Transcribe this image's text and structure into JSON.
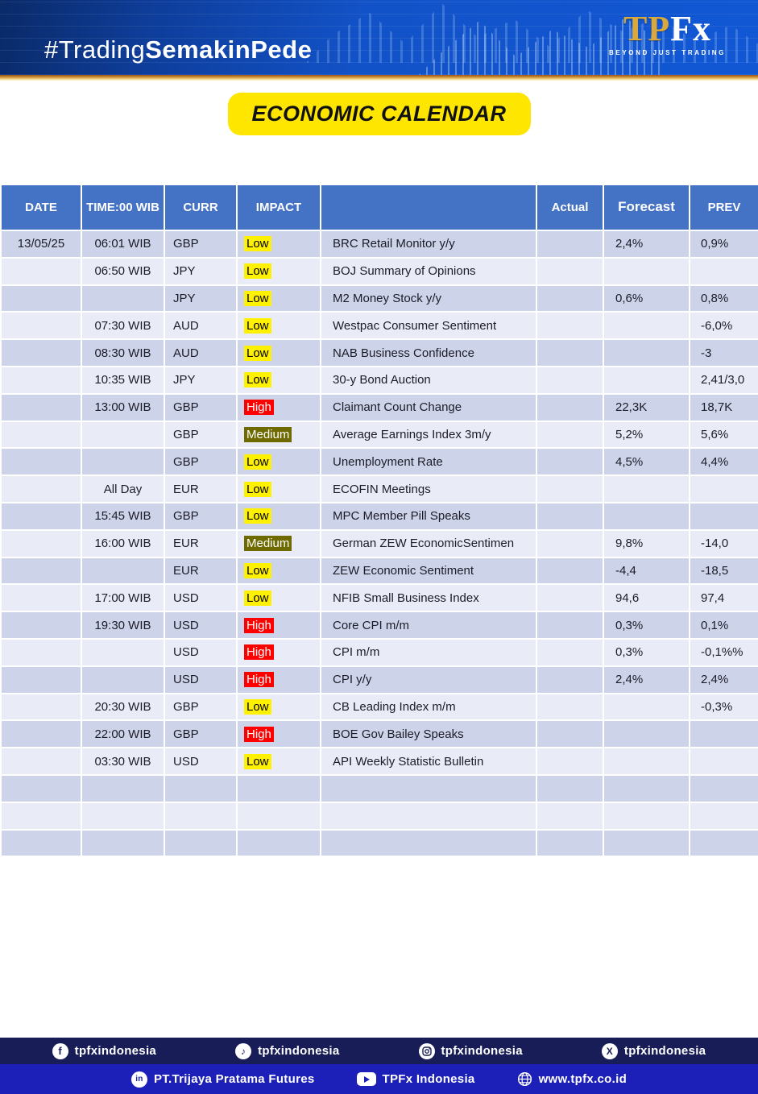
{
  "banner": {
    "hashtag_regular": "#Trading",
    "hashtag_bold": "SemakinPede",
    "logo_tp": "TP",
    "logo_fx": "Fx",
    "logo_tagline": "BEYOND JUST TRADING"
  },
  "title": "ECONOMIC CALENDAR",
  "colors": {
    "banner_blue": "#1254cb",
    "gold_strip": "#d99b3c",
    "title_pill_bg": "#ffe600",
    "table_header_bg": "#4472c4",
    "row_dark": "#cdd3e9",
    "row_light": "#e9ebf6",
    "footer_bar1_bg": "#181d57",
    "footer_bar2_bg": "#1c20b8"
  },
  "table": {
    "headers": {
      "date": "DATE",
      "time": "TIME:00 WIB",
      "curr": "CURR",
      "impact": "IMPACT",
      "event": "",
      "actual": "Actual",
      "forecast": "Forecast",
      "prev": "PREV"
    },
    "impact_styles": {
      "Low": {
        "bg": "#fff100",
        "text": "#000000"
      },
      "Medium": {
        "bg": "#6e6a00",
        "text": "#ffffff"
      },
      "High": {
        "bg": "#ff0000",
        "text": "#ffffff"
      }
    },
    "rows": [
      {
        "date": "13/05/25",
        "time": "06:01 WIB",
        "curr": "GBP",
        "impact": "Low",
        "event": "BRC Retail Monitor y/y",
        "actual": "",
        "forecast": "2,4%",
        "prev": "0,9%"
      },
      {
        "date": "",
        "time": "06:50 WIB",
        "curr": "JPY",
        "impact": "Low",
        "event": "BOJ Summary of Opinions",
        "actual": "",
        "forecast": "",
        "prev": ""
      },
      {
        "date": "",
        "time": "",
        "curr": "JPY",
        "impact": "Low",
        "event": "M2 Money Stock y/y",
        "actual": "",
        "forecast": "0,6%",
        "prev": "0,8%"
      },
      {
        "date": "",
        "time": "07:30 WIB",
        "curr": "AUD",
        "impact": "Low",
        "event": "Westpac Consumer Sentiment",
        "actual": "",
        "forecast": "",
        "prev": "-6,0%"
      },
      {
        "date": "",
        "time": "08:30 WIB",
        "curr": "AUD",
        "impact": "Low",
        "event": "NAB Business Confidence",
        "actual": "",
        "forecast": "",
        "prev": "-3"
      },
      {
        "date": "",
        "time": "10:35 WIB",
        "curr": "JPY",
        "impact": "Low",
        "event": "30-y Bond Auction",
        "actual": "",
        "forecast": "",
        "prev": "2,41/3,0"
      },
      {
        "date": "",
        "time": "13:00 WIB",
        "curr": "GBP",
        "impact": "High",
        "event": "Claimant Count Change",
        "actual": "",
        "forecast": "22,3K",
        "prev": "18,7K"
      },
      {
        "date": "",
        "time": "",
        "curr": "GBP",
        "impact": "Medium",
        "event": "Average Earnings Index 3m/y",
        "actual": "",
        "forecast": "5,2%",
        "prev": "5,6%"
      },
      {
        "date": "",
        "time": "",
        "curr": "GBP",
        "impact": "Low",
        "event": "Unemployment Rate",
        "actual": "",
        "forecast": "4,5%",
        "prev": "4,4%"
      },
      {
        "date": "",
        "time": "All Day",
        "curr": "EUR",
        "impact": "Low",
        "event": "ECOFIN Meetings",
        "actual": "",
        "forecast": "",
        "prev": ""
      },
      {
        "date": "",
        "time": "15:45 WIB",
        "curr": "GBP",
        "impact": "Low",
        "event": "MPC Member Pill Speaks",
        "actual": "",
        "forecast": "",
        "prev": ""
      },
      {
        "date": "",
        "time": "16:00 WIB",
        "curr": "EUR",
        "impact": "Medium",
        "event": "German ZEW EconomicSentimen",
        "actual": "",
        "forecast": "9,8%",
        "prev": "-14,0"
      },
      {
        "date": "",
        "time": "",
        "curr": "EUR",
        "impact": "Low",
        "event": "ZEW Economic Sentiment",
        "actual": "",
        "forecast": "-4,4",
        "prev": "-18,5"
      },
      {
        "date": "",
        "time": "17:00 WIB",
        "curr": "USD",
        "impact": "Low",
        "event": "NFIB Small Business Index",
        "actual": "",
        "forecast": "94,6",
        "prev": "97,4"
      },
      {
        "date": "",
        "time": "19:30 WIB",
        "curr": "USD",
        "impact": "High",
        "event": "Core CPI m/m",
        "actual": "",
        "forecast": "0,3%",
        "prev": "0,1%"
      },
      {
        "date": "",
        "time": "",
        "curr": "USD",
        "impact": "High",
        "event": "CPI m/m",
        "actual": "",
        "forecast": "0,3%",
        "prev": "-0,1%%"
      },
      {
        "date": "",
        "time": "",
        "curr": "USD",
        "impact": "High",
        "event": "CPI y/y",
        "actual": "",
        "forecast": "2,4%",
        "prev": "2,4%"
      },
      {
        "date": "",
        "time": "20:30 WIB",
        "curr": "GBP",
        "impact": "Low",
        "event": "CB Leading Index m/m",
        "actual": "",
        "forecast": "",
        "prev": "-0,3%"
      },
      {
        "date": "",
        "time": "22:00 WIB",
        "curr": "GBP",
        "impact": "High",
        "event": "BOE Gov Bailey Speaks",
        "actual": "",
        "forecast": "",
        "prev": ""
      },
      {
        "date": "",
        "time": "03:30 WIB",
        "curr": "USD",
        "impact": "Low",
        "event": "API Weekly Statistic Bulletin",
        "actual": "",
        "forecast": "",
        "prev": ""
      },
      {
        "date": "",
        "time": "",
        "curr": "",
        "impact": "",
        "event": "",
        "actual": "",
        "forecast": "",
        "prev": ""
      },
      {
        "date": "",
        "time": "",
        "curr": "",
        "impact": "",
        "event": "",
        "actual": "",
        "forecast": "",
        "prev": ""
      },
      {
        "date": "",
        "time": "",
        "curr": "",
        "impact": "",
        "event": "",
        "actual": "",
        "forecast": "",
        "prev": ""
      }
    ]
  },
  "footer": {
    "bar1": [
      {
        "icon": "facebook-icon",
        "label": "tpfxindonesia"
      },
      {
        "icon": "tiktok-icon",
        "label": "tpfxindonesia"
      },
      {
        "icon": "instagram-icon",
        "label": "tpfxindonesia"
      },
      {
        "icon": "x-icon",
        "label": "tpfxindonesia"
      }
    ],
    "bar2": [
      {
        "icon": "linkedin-icon",
        "label": "PT.Trijaya Pratama Futures"
      },
      {
        "icon": "youtube-icon",
        "label": "TPFx Indonesia"
      },
      {
        "icon": "globe-icon",
        "label": "www.tpfx.co.id"
      }
    ]
  }
}
